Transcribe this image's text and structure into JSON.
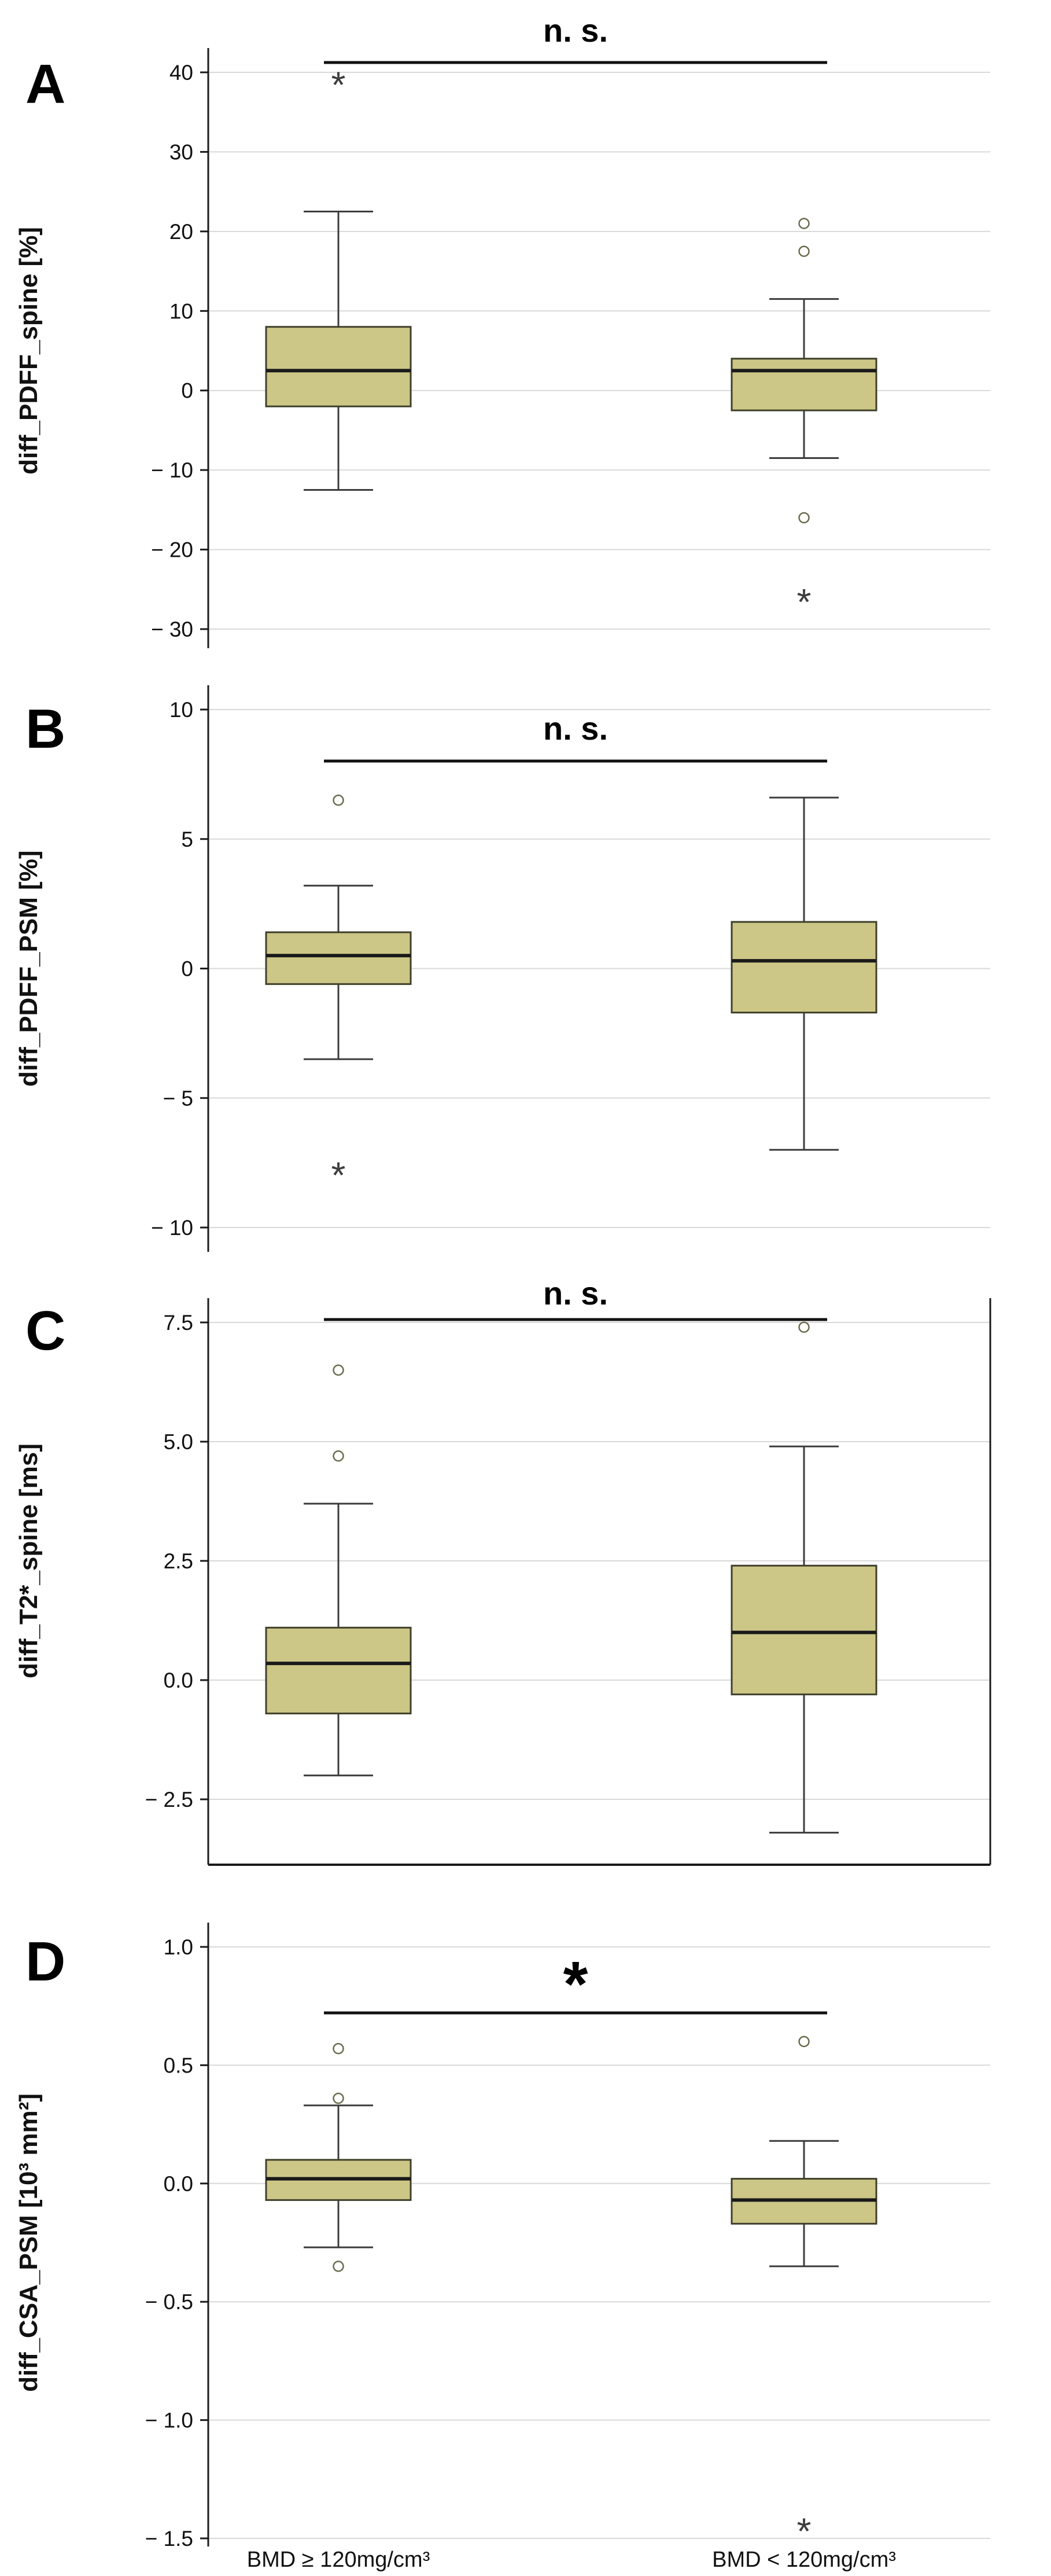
{
  "figure": {
    "background": "#ffffff",
    "box_fill": "#cdc787",
    "box_stroke": "#3f3f2a",
    "median_color": "#1a1a1a",
    "whisker_color": "#3c3c3c",
    "gridline_color": "#d9d9d9",
    "axis_color": "#1a1a1a",
    "outlier_ring_color": "#6b6b4e",
    "star_color": "#3c3c3c",
    "x_categories": [
      "BMD ≥ 120mg/cm³",
      "BMD < 120mg/cm³"
    ]
  },
  "chart_data": [
    {
      "type": "box",
      "panel": "A",
      "ylabel": "diff_PDFF_spine [%]",
      "ylim": [
        -30,
        40
      ],
      "grid": true,
      "significance": "n. s.",
      "categories": [
        "BMD ≥ 120mg/cm³",
        "BMD < 120mg/cm³"
      ],
      "yticks": [
        {
          "label": "40",
          "value": 40
        },
        {
          "label": "30",
          "value": 30
        },
        {
          "label": "20",
          "value": 20
        },
        {
          "label": "10",
          "value": 10
        },
        {
          "label": "0",
          "value": 0
        },
        {
          "label": "− 10",
          "value": -10
        },
        {
          "label": "− 20",
          "value": -20
        },
        {
          "label": "− 30",
          "value": -30
        }
      ],
      "series": [
        {
          "name": "BMD ≥ 120mg/cm³",
          "whisker_low": -12.5,
          "q1": -2,
          "median": 2.5,
          "q3": 8,
          "whisker_high": 22.5,
          "outliers": [
            {
              "value": 39,
              "marker": "star"
            }
          ]
        },
        {
          "name": "BMD < 120mg/cm³",
          "whisker_low": -8.5,
          "q1": -2.5,
          "median": 2.5,
          "q3": 4,
          "whisker_high": 11.5,
          "outliers": [
            {
              "value": 21,
              "marker": "circle"
            },
            {
              "value": 17.5,
              "marker": "circle"
            },
            {
              "value": -16,
              "marker": "circle"
            },
            {
              "value": -26,
              "marker": "star"
            }
          ]
        }
      ]
    },
    {
      "type": "box",
      "panel": "B",
      "ylabel": "diff_PDFF_PSM [%]",
      "ylim": [
        -10,
        10
      ],
      "grid": true,
      "significance": "n. s.",
      "categories": [
        "BMD ≥ 120mg/cm³",
        "BMD < 120mg/cm³"
      ],
      "yticks": [
        {
          "label": "10",
          "value": 10
        },
        {
          "label": "5",
          "value": 5
        },
        {
          "label": "0",
          "value": 0
        },
        {
          "label": "− 5",
          "value": -5
        },
        {
          "label": "− 10",
          "value": -10
        }
      ],
      "series": [
        {
          "name": "BMD ≥ 120mg/cm³",
          "whisker_low": -3.5,
          "q1": -0.6,
          "median": 0.5,
          "q3": 1.4,
          "whisker_high": 3.2,
          "outliers": [
            {
              "value": 6.5,
              "marker": "circle"
            },
            {
              "value": -7.8,
              "marker": "star"
            }
          ]
        },
        {
          "name": "BMD < 120mg/cm³",
          "whisker_low": -7.0,
          "q1": -1.7,
          "median": 0.3,
          "q3": 1.8,
          "whisker_high": 6.6,
          "outliers": []
        }
      ]
    },
    {
      "type": "box",
      "panel": "C",
      "ylabel": "diff_T2*_spine [ms]",
      "ylim": [
        -2.5,
        7.5
      ],
      "grid": true,
      "significance": "n. s.",
      "categories": [
        "BMD ≥ 120mg/cm³",
        "BMD < 120mg/cm³"
      ],
      "yticks": [
        {
          "label": "7.5",
          "value": 7.5
        },
        {
          "label": "5.0",
          "value": 5.0
        },
        {
          "label": "2.5",
          "value": 2.5
        },
        {
          "label": "0.0",
          "value": 0.0
        },
        {
          "label": "− 2.5",
          "value": -2.5
        }
      ],
      "series": [
        {
          "name": "BMD ≥ 120mg/cm³",
          "whisker_low": -2.0,
          "q1": -0.7,
          "median": 0.35,
          "q3": 1.1,
          "whisker_high": 3.7,
          "outliers": [
            {
              "value": 6.5,
              "marker": "circle"
            },
            {
              "value": 4.7,
              "marker": "circle"
            }
          ]
        },
        {
          "name": "BMD < 120mg/cm³",
          "whisker_low": -3.2,
          "q1": -0.3,
          "median": 1.0,
          "q3": 2.4,
          "whisker_high": 4.9,
          "outliers": [
            {
              "value": 7.4,
              "marker": "circle"
            }
          ]
        }
      ]
    },
    {
      "type": "box",
      "panel": "D",
      "ylabel": "diff_CSA_PSM [10³ mm²]",
      "ylim": [
        -1.5,
        1.0
      ],
      "grid": true,
      "significance": "*",
      "categories": [
        "BMD ≥ 120mg/cm³",
        "BMD < 120mg/cm³"
      ],
      "yticks": [
        {
          "label": "1.0",
          "value": 1.0
        },
        {
          "label": "0.5",
          "value": 0.5
        },
        {
          "label": "0.0",
          "value": 0.0
        },
        {
          "label": "− 0.5",
          "value": -0.5
        },
        {
          "label": "− 1.0",
          "value": -1.0
        },
        {
          "label": "− 1.5",
          "value": -1.5
        }
      ],
      "series": [
        {
          "name": "BMD ≥ 120mg/cm³",
          "whisker_low": -0.27,
          "q1": -0.07,
          "median": 0.02,
          "q3": 0.1,
          "whisker_high": 0.33,
          "outliers": [
            {
              "value": 0.57,
              "marker": "circle"
            },
            {
              "value": 0.36,
              "marker": "circle"
            },
            {
              "value": -0.35,
              "marker": "circle"
            }
          ]
        },
        {
          "name": "BMD < 120mg/cm³",
          "whisker_low": -0.35,
          "q1": -0.17,
          "median": -0.07,
          "q3": 0.02,
          "whisker_high": 0.18,
          "outliers": [
            {
              "value": 0.6,
              "marker": "circle"
            },
            {
              "value": -1.45,
              "marker": "star"
            }
          ]
        }
      ]
    }
  ]
}
